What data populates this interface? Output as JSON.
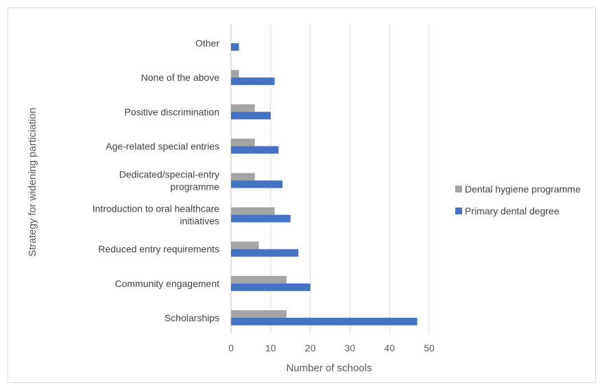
{
  "chart_data": {
    "type": "bar",
    "orientation": "horizontal",
    "title": "",
    "xlabel": "Number of schools",
    "ylabel": "Strategy for widening particiation",
    "xlim": [
      0,
      50
    ],
    "xticks": [
      0,
      10,
      20,
      30,
      40,
      50
    ],
    "grid": true,
    "legend_position": "right",
    "categories": [
      "Other",
      "None of the above",
      "Positive discrimination",
      "Age-related special entries",
      "Dedicated/special-entry programme",
      "Introduction to oral healthcare initiatives",
      "Reduced entry requirements",
      "Community engagement",
      "Scholarships"
    ],
    "series": [
      {
        "name": "Dental hygiene programme",
        "color": "#a5a5a5",
        "values": [
          0,
          2,
          6,
          6,
          6,
          11,
          7,
          14,
          14
        ]
      },
      {
        "name": "Primary dental degree",
        "color": "#4472c4",
        "values": [
          2,
          11,
          10,
          12,
          13,
          15,
          17,
          20,
          47
        ]
      }
    ]
  }
}
